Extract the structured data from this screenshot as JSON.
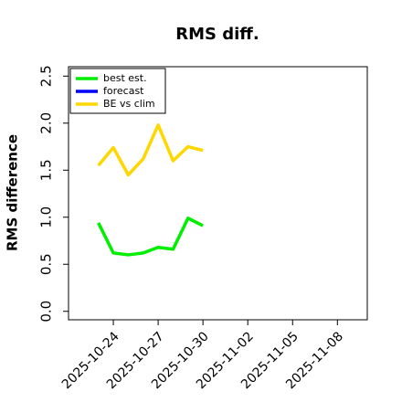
{
  "chart_data": {
    "type": "line",
    "title": "RMS diff.",
    "y_label": "RMS difference",
    "x": [
      "2025-10-23",
      "2025-10-24",
      "2025-10-25",
      "2025-10-26",
      "2025-10-27",
      "2025-10-28",
      "2025-10-29",
      "2025-10-30"
    ],
    "series": [
      {
        "name": "best est.",
        "color": "#00ee00",
        "values": [
          0.94,
          0.62,
          0.6,
          0.62,
          0.68,
          0.66,
          0.99,
          0.91
        ]
      },
      {
        "name": "forecast",
        "color": "#0000ff",
        "values": [
          null,
          null,
          null,
          null,
          null,
          null,
          null,
          null
        ]
      },
      {
        "name": "BE vs clim",
        "color": "#ffd700",
        "values": [
          1.55,
          1.74,
          1.45,
          1.62,
          1.98,
          1.6,
          1.75,
          1.71
        ]
      }
    ],
    "xlim": [
      "2025-10-21",
      "2025-11-10"
    ],
    "xticks": [
      "2025-10-24",
      "2025-10-27",
      "2025-10-30",
      "2025-11-02",
      "2025-11-05",
      "2025-11-08"
    ],
    "xtick_colors": [
      "#000000",
      "#000000",
      "#228b22",
      "#000000",
      "#000000",
      "#000000"
    ],
    "ylim": [
      -0.09,
      2.6
    ],
    "yticks": [
      {
        "value": 0,
        "label": "0.0"
      },
      {
        "value": 0.5,
        "label": "0.5"
      },
      {
        "value": 1,
        "label": "1.0"
      },
      {
        "value": 1.5,
        "label": "1.5"
      },
      {
        "value": 2,
        "label": "2.0"
      },
      {
        "value": 2.5,
        "label": "2.5"
      }
    ],
    "legend": "upper left"
  }
}
